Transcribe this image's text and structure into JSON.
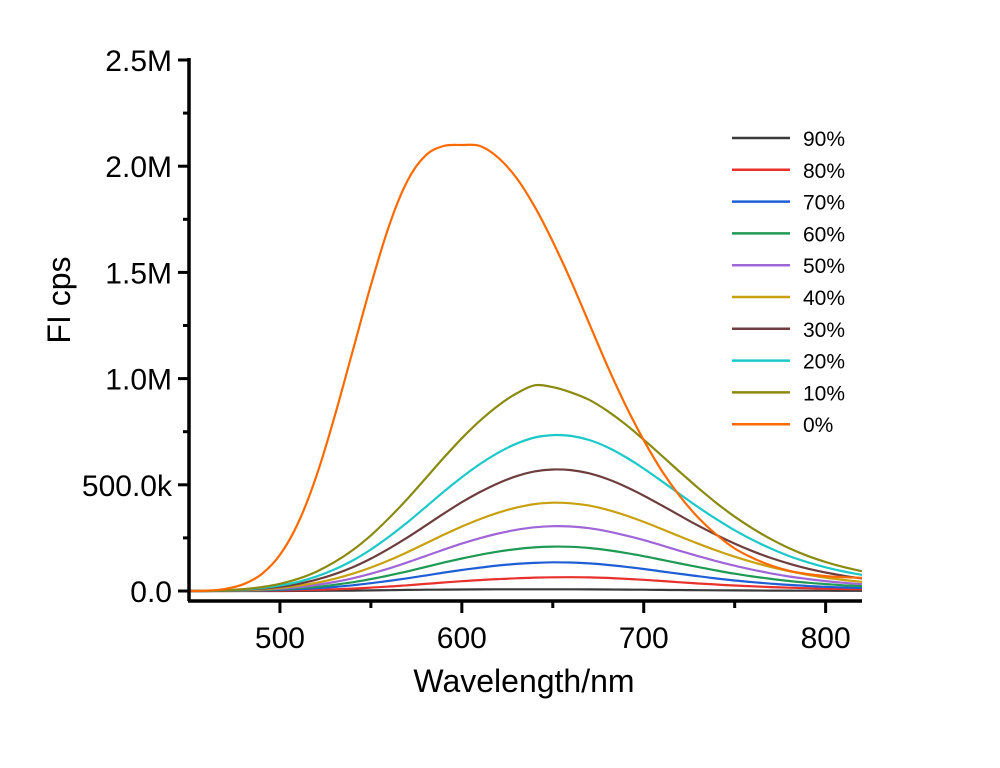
{
  "chart_data": {
    "type": "line",
    "title": "",
    "xlabel": "Wavelength/nm",
    "ylabel": "FI cps",
    "xlim": [
      450,
      820
    ],
    "ylim": [
      -60000,
      2500000
    ],
    "x_ticks": [
      500,
      600,
      700,
      800
    ],
    "x_tick_labels": [
      "500",
      "600",
      "700",
      "800"
    ],
    "x_minor_ticks": [
      550,
      650,
      750
    ],
    "y_ticks": [
      0,
      500000,
      1000000,
      1500000,
      2000000,
      2500000
    ],
    "y_tick_labels": [
      "0.0",
      "500.0k",
      "1.0M",
      "1.5M",
      "2.0M",
      "2.5M"
    ],
    "y_minor_ticks": [
      250000,
      750000,
      1250000,
      1750000,
      2250000
    ],
    "grid": false,
    "legend_position": "top-right",
    "x": [
      450,
      460,
      470,
      480,
      490,
      500,
      510,
      520,
      530,
      540,
      550,
      560,
      570,
      580,
      590,
      600,
      610,
      620,
      630,
      640,
      650,
      660,
      670,
      680,
      690,
      700,
      710,
      720,
      730,
      740,
      750,
      760,
      770,
      780,
      790,
      800,
      810,
      820
    ],
    "series": [
      {
        "name": "90%",
        "color": "#3a3a3a",
        "values": [
          0,
          0,
          0,
          0,
          0,
          0,
          500,
          1000,
          1500,
          2000,
          3000,
          4000,
          5000,
          6000,
          6500,
          7000,
          7500,
          8000,
          8000,
          8000,
          8000,
          8000,
          7500,
          7000,
          6500,
          6000,
          5000,
          4500,
          4000,
          3500,
          3000,
          2500,
          2000,
          2000,
          1500,
          1500,
          1000,
          1000
        ]
      },
      {
        "name": "80%",
        "color": "#e8312c",
        "values": [
          0,
          0,
          0,
          500,
          1000,
          2000,
          3500,
          5500,
          8000,
          11500,
          16000,
          21000,
          27000,
          33500,
          40000,
          46000,
          51500,
          56000,
          60000,
          63000,
          64500,
          65000,
          64000,
          61500,
          57500,
          52500,
          47000,
          41000,
          35500,
          30500,
          26000,
          22000,
          18500,
          15500,
          13000,
          11000,
          9500,
          8000
        ]
      },
      {
        "name": "70%",
        "color": "#1f5fd6",
        "values": [
          0,
          0,
          500,
          1500,
          3000,
          5000,
          8500,
          13000,
          19000,
          27000,
          36500,
          47500,
          60000,
          73000,
          86500,
          99000,
          110000,
          120000,
          127500,
          132500,
          135000,
          134000,
          130000,
          123000,
          114000,
          103500,
          92000,
          80500,
          69500,
          59000,
          49500,
          41500,
          34500,
          28500,
          23500,
          19500,
          16500,
          14000
        ]
      },
      {
        "name": "60%",
        "color": "#1f9a55",
        "values": [
          0,
          0,
          1000,
          2000,
          4000,
          7500,
          12500,
          19500,
          29000,
          41000,
          56000,
          73500,
          92500,
          113000,
          133500,
          153000,
          170500,
          185500,
          197500,
          205500,
          209000,
          208000,
          202500,
          192500,
          179500,
          164000,
          147000,
          129500,
          112500,
          96500,
          81500,
          68500,
          57000,
          47000,
          39000,
          32500,
          27000,
          23000
        ]
      },
      {
        "name": "50%",
        "color": "#a066d8",
        "values": [
          0,
          500,
          1000,
          3000,
          6000,
          11000,
          18000,
          28500,
          42500,
          60000,
          81500,
          106500,
          134500,
          164500,
          194500,
          223000,
          248500,
          270500,
          288000,
          300000,
          305000,
          303500,
          295500,
          281000,
          262000,
          239500,
          214500,
          189000,
          164000,
          140500,
          119000,
          100000,
          83000,
          68500,
          56500,
          46500,
          38500,
          32000
        ]
      },
      {
        "name": "40%",
        "color": "#c9a010",
        "values": [
          0,
          500,
          1500,
          4000,
          8000,
          14500,
          24500,
          38500,
          57500,
          81500,
          110500,
          144500,
          182500,
          223500,
          264500,
          303500,
          338500,
          368500,
          392500,
          409000,
          415500,
          413000,
          402000,
          382500,
          356500,
          325500,
          291500,
          256500,
          222500,
          190500,
          161500,
          135500,
          112500,
          93000,
          76500,
          63000,
          52000,
          43000
        ]
      },
      {
        "name": "30%",
        "color": "#6e3d3d",
        "values": [
          0,
          500,
          2000,
          5500,
          11000,
          20000,
          33500,
          53000,
          79000,
          112000,
          152500,
          199500,
          251500,
          307500,
          364000,
          418000,
          466000,
          507500,
          540500,
          563000,
          572000,
          569000,
          554000,
          527500,
          491500,
          449000,
          402500,
          354500,
          307500,
          263500,
          223000,
          187000,
          155500,
          128500,
          105500,
          87000,
          71500,
          59000
        ]
      },
      {
        "name": "20%",
        "color": "#1cc8c8",
        "values": [
          0,
          1000,
          3000,
          7000,
          14000,
          25500,
          43000,
          68000,
          101500,
          143500,
          195500,
          256000,
          322500,
          394500,
          467000,
          536000,
          598000,
          651000,
          693500,
          722500,
          734000,
          730000,
          711000,
          677000,
          631000,
          576500,
          516500,
          455000,
          394500,
          338000,
          286000,
          240000,
          199500,
          164500,
          135500,
          111500,
          92000,
          76000
        ]
      },
      {
        "name": "10%",
        "color": "#8a8a10",
        "values": [
          0,
          1000,
          3500,
          9000,
          18500,
          34000,
          57500,
          91000,
          136000,
          192500,
          262000,
          343500,
          433000,
          529500,
          626500,
          719000,
          802000,
          873000,
          930000,
          968500,
          960000,
          935000,
          900000,
          848000,
          785000,
          712500,
          636500,
          559500,
          484500,
          414000,
          350000,
          293500,
          244000,
          201000,
          165500,
          136500,
          112500,
          93000
        ]
      },
      {
        "name": "0%",
        "color": "#ff6a00",
        "values": [
          0,
          2000,
          10000,
          32000,
          80000,
          170000,
          320000,
          540000,
          820000,
          1130000,
          1440000,
          1720000,
          1930000,
          2050000,
          2095000,
          2100000,
          2095000,
          2040000,
          1945000,
          1810000,
          1645000,
          1460000,
          1260000,
          1060000,
          875000,
          710000,
          565000,
          445000,
          345000,
          265000,
          200000,
          155000,
          120000,
          95000,
          80000,
          70000,
          65000,
          62000
        ]
      }
    ]
  }
}
